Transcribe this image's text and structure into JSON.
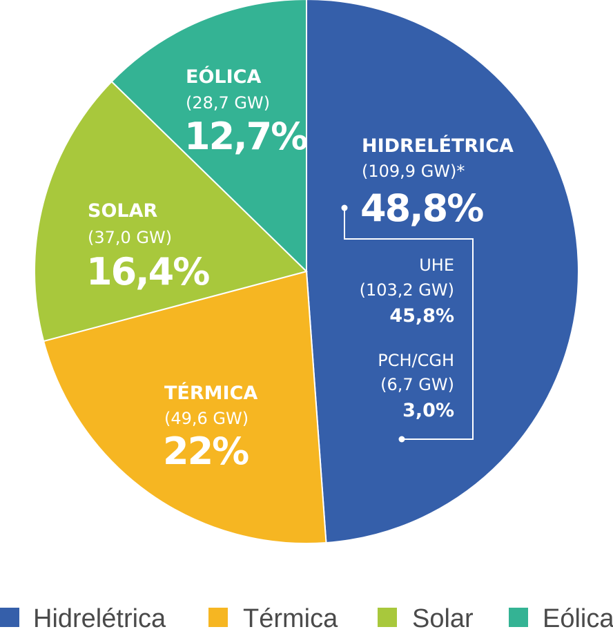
{
  "chart_data": {
    "type": "pie",
    "slices": [
      {
        "name": "Hidrelétrica",
        "label": "HIDRELÉTRICA",
        "capacity": "(109,9 GW)*",
        "percent_label": "48,8%",
        "value": 48.8,
        "color": "#355faa"
      },
      {
        "name": "Térmica",
        "label": "TÉRMICA",
        "capacity": "(49,6 GW)",
        "percent_label": "22%",
        "value": 22.0,
        "color": "#f6b622"
      },
      {
        "name": "Solar",
        "label": "SOLAR",
        "capacity": "(37,0 GW)",
        "percent_label": "16,4%",
        "value": 16.4,
        "color": "#a8c83c"
      },
      {
        "name": "Eólica",
        "label": "EÓLICA",
        "capacity": "(28,7 GW)",
        "percent_label": "12,7%",
        "value": 12.7,
        "color": "#34b394"
      }
    ],
    "sub_breakdown": [
      {
        "name": "UHE",
        "capacity": "(103,2 GW)",
        "percent_label": "45,8%",
        "value": 45.8
      },
      {
        "name": "PCH/CGH",
        "capacity": "(6,7 GW)",
        "percent_label": "3,0%",
        "value": 3.0
      }
    ],
    "legend": [
      "Hidrelétrica",
      "Térmica",
      "Solar",
      "Eólica"
    ],
    "legend_position": "bottom"
  }
}
